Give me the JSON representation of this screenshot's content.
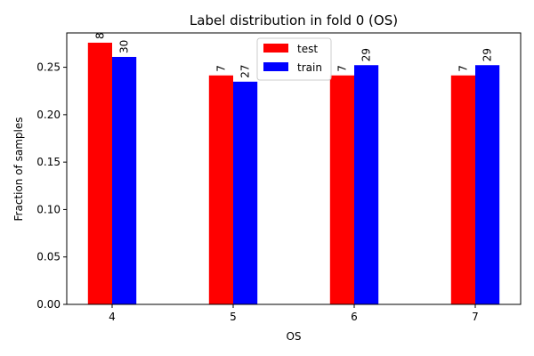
{
  "chart_data": {
    "type": "bar",
    "title": "Label distribution in fold 0 (OS)",
    "xlabel": "OS",
    "ylabel": "Fraction of samples",
    "categories": [
      "4",
      "5",
      "6",
      "7"
    ],
    "series": [
      {
        "name": "test",
        "color": "#ff0000",
        "values": [
          0.2759,
          0.2414,
          0.2414,
          0.2414
        ],
        "labels": [
          "8",
          "7",
          "7",
          "7"
        ]
      },
      {
        "name": "train",
        "color": "#0000ff",
        "values": [
          0.2609,
          0.2348,
          0.2522,
          0.2522
        ],
        "labels": [
          "30",
          "27",
          "29",
          "29"
        ]
      }
    ],
    "ylim": [
      0,
      0.2862
    ],
    "yticks": [
      "0.00",
      "0.05",
      "0.10",
      "0.15",
      "0.20",
      "0.25"
    ],
    "legend": "top-center",
    "grid": false
  }
}
